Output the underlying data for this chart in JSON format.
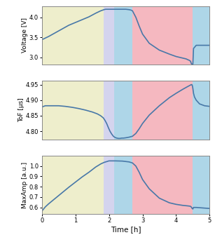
{
  "xlim": [
    0,
    5
  ],
  "regions": [
    {
      "start": 0,
      "end": 1.85,
      "color": "#eeeecc",
      "alpha": 1.0
    },
    {
      "start": 1.85,
      "end": 2.15,
      "color": "#d4d4ee",
      "alpha": 1.0
    },
    {
      "start": 2.15,
      "end": 2.7,
      "color": "#aed6e8",
      "alpha": 1.0
    },
    {
      "start": 2.7,
      "end": 4.5,
      "color": "#f5b8c0",
      "alpha": 1.0
    },
    {
      "start": 4.5,
      "end": 5.0,
      "color": "#aed6e8",
      "alpha": 1.0
    }
  ],
  "voltage": {
    "ylabel": "Voltage [V]",
    "ylim": [
      2.82,
      4.28
    ],
    "yticks": [
      3.0,
      3.5,
      4.0
    ],
    "x": [
      0.0,
      0.05,
      0.1,
      0.2,
      0.35,
      0.5,
      0.65,
      0.8,
      1.0,
      1.2,
      1.4,
      1.6,
      1.75,
      1.85,
      1.9,
      1.95,
      2.0,
      2.05,
      2.1,
      2.15,
      2.2,
      2.3,
      2.4,
      2.5,
      2.6,
      2.65,
      2.68,
      2.7,
      2.8,
      2.9,
      3.0,
      3.2,
      3.5,
      3.8,
      4.0,
      4.2,
      4.3,
      4.35,
      4.38,
      4.4,
      4.42,
      4.43,
      4.44,
      4.45,
      4.46,
      4.47,
      4.48,
      4.5,
      4.52,
      4.6,
      4.8,
      5.0
    ],
    "y": [
      3.44,
      3.46,
      3.48,
      3.52,
      3.59,
      3.66,
      3.73,
      3.8,
      3.87,
      3.94,
      4.01,
      4.1,
      4.16,
      4.19,
      4.2,
      4.2,
      4.2,
      4.2,
      4.2,
      4.2,
      4.2,
      4.2,
      4.2,
      4.2,
      4.19,
      4.18,
      4.17,
      4.16,
      4.0,
      3.78,
      3.58,
      3.35,
      3.18,
      3.08,
      3.02,
      2.98,
      2.96,
      2.94,
      2.93,
      2.92,
      2.91,
      2.9,
      2.88,
      2.85,
      2.84,
      2.83,
      2.82,
      2.82,
      3.22,
      3.3,
      3.3,
      3.3
    ]
  },
  "tof": {
    "ylabel": "ToF [μs]",
    "ylim": [
      4.774,
      4.962
    ],
    "yticks": [
      4.8,
      4.85,
      4.9,
      4.95
    ],
    "x": [
      0.0,
      0.1,
      0.3,
      0.5,
      0.7,
      0.9,
      1.1,
      1.3,
      1.5,
      1.65,
      1.75,
      1.83,
      1.88,
      1.93,
      1.98,
      2.03,
      2.08,
      2.13,
      2.18,
      2.23,
      2.28,
      2.33,
      2.38,
      2.43,
      2.5,
      2.6,
      2.7,
      2.8,
      2.9,
      3.0,
      3.2,
      3.5,
      3.8,
      4.0,
      4.2,
      4.35,
      4.42,
      4.45,
      4.47,
      4.48,
      4.49,
      4.5,
      4.52,
      4.55,
      4.6,
      4.7,
      4.85,
      5.0
    ],
    "y": [
      4.878,
      4.882,
      4.882,
      4.882,
      4.88,
      4.877,
      4.873,
      4.868,
      4.862,
      4.856,
      4.85,
      4.843,
      4.835,
      4.825,
      4.812,
      4.8,
      4.791,
      4.784,
      4.78,
      4.778,
      4.777,
      4.777,
      4.778,
      4.778,
      4.779,
      4.781,
      4.784,
      4.793,
      4.808,
      4.825,
      4.852,
      4.882,
      4.908,
      4.922,
      4.935,
      4.944,
      4.948,
      4.95,
      4.95,
      4.948,
      4.944,
      4.938,
      4.922,
      4.91,
      4.9,
      4.888,
      4.882,
      4.88
    ]
  },
  "maxamp": {
    "ylabel": "MaxAmp [a.u.]",
    "ylim": [
      0.535,
      1.1
    ],
    "yticks": [
      0.6,
      0.7,
      0.8,
      0.9,
      1.0
    ],
    "x": [
      0.0,
      0.05,
      0.1,
      0.2,
      0.35,
      0.5,
      0.65,
      0.8,
      1.0,
      1.2,
      1.4,
      1.6,
      1.75,
      1.85,
      1.9,
      1.95,
      2.0,
      2.05,
      2.1,
      2.2,
      2.4,
      2.6,
      2.7,
      2.8,
      2.9,
      3.0,
      3.2,
      3.5,
      3.8,
      4.0,
      4.2,
      4.35,
      4.42,
      4.44,
      4.45,
      4.46,
      4.47,
      4.48,
      4.5,
      4.52,
      4.6,
      4.8,
      5.0
    ],
    "y": [
      0.565,
      0.585,
      0.605,
      0.635,
      0.675,
      0.715,
      0.755,
      0.795,
      0.845,
      0.895,
      0.94,
      0.99,
      1.02,
      1.035,
      1.04,
      1.045,
      1.05,
      1.05,
      1.05,
      1.05,
      1.048,
      1.04,
      1.03,
      1.0,
      0.94,
      0.87,
      0.78,
      0.69,
      0.645,
      0.63,
      0.62,
      0.615,
      0.612,
      0.608,
      0.605,
      0.6,
      0.595,
      0.59,
      0.585,
      0.6,
      0.6,
      0.595,
      0.59
    ]
  },
  "line_color": "#4878a8",
  "line_width": 1.2,
  "xlabel": "Time [h]",
  "xticks": [
    0,
    1,
    2,
    3,
    4,
    5
  ]
}
